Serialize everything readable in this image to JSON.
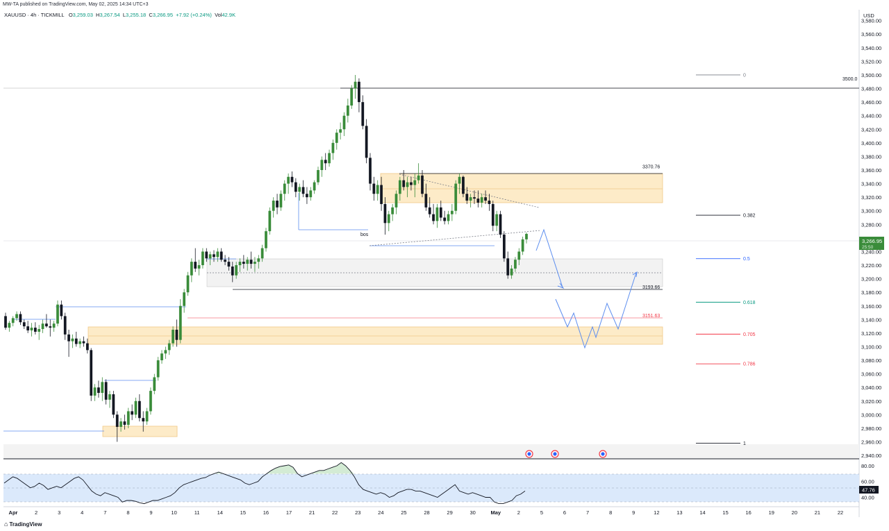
{
  "header": {
    "published": "MW-TA published on TradingView.com, May 02, 2025 14:34 UTC+3"
  },
  "info": {
    "symbol": "XAUUSD · 4h · TICKMILL",
    "o_label": "O",
    "o": "3,259.03",
    "h_label": "H",
    "h": "3,267.54",
    "l_label": "L",
    "l": "3,255.18",
    "c_label": "C",
    "c": "3,266.95",
    "change": "+7.92 (+0.24%)",
    "vol_label": "Vol",
    "vol": "42.9K"
  },
  "colors": {
    "up": "#3a8c3a",
    "down": "#131722",
    "zone_fill": "#fdebc8",
    "zone_stroke": "#f0c987",
    "blue_line": "#2962ff",
    "rsi_band": "#dbe9fb",
    "price_tag": "#3a8c3a"
  },
  "footer": {
    "logo": "TradingView",
    "logo_icon": "tradingview-logo-icon"
  },
  "chart_data": {
    "type": "candlestick",
    "currency_label": "USD",
    "y_axis_ticks": [
      "3,580.00",
      "3,560.00",
      "3,540.00",
      "3,520.00",
      "3,500.00",
      "3,480.00",
      "3,460.00",
      "3,440.00",
      "3,420.00",
      "3,400.00",
      "3,380.00",
      "3,360.00",
      "3,340.00",
      "3,320.00",
      "3,300.00",
      "3,280.00",
      "3,260.00",
      "3,240.00",
      "3,220.00",
      "3,200.00",
      "3,180.00",
      "3,160.00",
      "3,140.00",
      "3,120.00",
      "3,100.00",
      "3,080.00",
      "3,060.00",
      "3,040.00",
      "3,020.00",
      "3,000.00",
      "2,980.00",
      "2,960.00",
      "2,940.00"
    ],
    "ylim": [
      2936,
      3596
    ],
    "x_axis_labels": [
      "Apr",
      "2",
      "3",
      "4",
      "7",
      "8",
      "9",
      "10",
      "11",
      "14",
      "15",
      "16",
      "17",
      "21",
      "22",
      "23",
      "24",
      "25",
      "28",
      "29",
      "30",
      "May",
      "2",
      "5",
      "6",
      "7",
      "8",
      "9",
      "12",
      "13",
      "14",
      "15",
      "16",
      "19",
      "20",
      "21",
      "22"
    ],
    "current_price": "3,266.95",
    "countdown": "25:50",
    "candles": [
      [
        3145,
        3150,
        3125,
        3128
      ],
      [
        3128,
        3138,
        3122,
        3135
      ],
      [
        3135,
        3145,
        3130,
        3142
      ],
      [
        3142,
        3152,
        3138,
        3148
      ],
      [
        3148,
        3152,
        3132,
        3136
      ],
      [
        3136,
        3140,
        3126,
        3130
      ],
      [
        3130,
        3138,
        3120,
        3124
      ],
      [
        3124,
        3135,
        3115,
        3128
      ],
      [
        3128,
        3136,
        3118,
        3122
      ],
      [
        3122,
        3132,
        3110,
        3126
      ],
      [
        3126,
        3140,
        3120,
        3134
      ],
      [
        3134,
        3148,
        3128,
        3130
      ],
      [
        3130,
        3140,
        3115,
        3128
      ],
      [
        3128,
        3138,
        3122,
        3134
      ],
      [
        3134,
        3168,
        3130,
        3162
      ],
      [
        3162,
        3168,
        3140,
        3145
      ],
      [
        3145,
        3150,
        3110,
        3118
      ],
      [
        3118,
        3125,
        3085,
        3108
      ],
      [
        3108,
        3118,
        3098,
        3112
      ],
      [
        3112,
        3122,
        3100,
        3104
      ],
      [
        3104,
        3112,
        3098,
        3108
      ],
      [
        3108,
        3115,
        3100,
        3105
      ],
      [
        3105,
        3112,
        3090,
        3095
      ],
      [
        3095,
        3098,
        3020,
        3028
      ],
      [
        3028,
        3045,
        3020,
        3040
      ],
      [
        3040,
        3050,
        3025,
        3032
      ],
      [
        3032,
        3055,
        3020,
        3048
      ],
      [
        3048,
        3052,
        3015,
        3022
      ],
      [
        3022,
        3035,
        3010,
        3030
      ],
      [
        3030,
        3035,
        2995,
        3000
      ],
      [
        3000,
        3005,
        2960,
        2982
      ],
      [
        2982,
        2995,
        2975,
        2990
      ],
      [
        2990,
        3000,
        2978,
        2985
      ],
      [
        2985,
        3010,
        2980,
        3005
      ],
      [
        3005,
        3015,
        2992,
        3000
      ],
      [
        3000,
        3025,
        2995,
        3020
      ],
      [
        3020,
        3030,
        2990,
        2995
      ],
      [
        2995,
        3005,
        2975,
        2990
      ],
      [
        2990,
        3010,
        2985,
        3005
      ],
      [
        3005,
        3040,
        3000,
        3035
      ],
      [
        3035,
        3060,
        3030,
        3055
      ],
      [
        3055,
        3085,
        3050,
        3080
      ],
      [
        3080,
        3095,
        3075,
        3090
      ],
      [
        3090,
        3100,
        3082,
        3095
      ],
      [
        3095,
        3110,
        3088,
        3105
      ],
      [
        3105,
        3130,
        3100,
        3125
      ],
      [
        3125,
        3140,
        3100,
        3110
      ],
      [
        3110,
        3170,
        3105,
        3160
      ],
      [
        3160,
        3185,
        3150,
        3180
      ],
      [
        3180,
        3210,
        3175,
        3205
      ],
      [
        3205,
        3230,
        3195,
        3225
      ],
      [
        3225,
        3245,
        3210,
        3215
      ],
      [
        3215,
        3228,
        3205,
        3220
      ],
      [
        3220,
        3245,
        3215,
        3240
      ],
      [
        3240,
        3245,
        3225,
        3230
      ],
      [
        3230,
        3240,
        3220,
        3236
      ],
      [
        3236,
        3242,
        3225,
        3232
      ],
      [
        3232,
        3245,
        3225,
        3240
      ],
      [
        3240,
        3245,
        3225,
        3228
      ],
      [
        3228,
        3235,
        3220,
        3225
      ],
      [
        3225,
        3232,
        3212,
        3218
      ],
      [
        3218,
        3225,
        3195,
        3205
      ],
      [
        3205,
        3225,
        3200,
        3220
      ],
      [
        3220,
        3230,
        3210,
        3225
      ],
      [
        3225,
        3235,
        3215,
        3222
      ],
      [
        3222,
        3232,
        3212,
        3228
      ],
      [
        3228,
        3240,
        3215,
        3222
      ],
      [
        3222,
        3232,
        3210,
        3225
      ],
      [
        3225,
        3235,
        3215,
        3230
      ],
      [
        3230,
        3250,
        3225,
        3245
      ],
      [
        3245,
        3275,
        3240,
        3270
      ],
      [
        3270,
        3305,
        3265,
        3300
      ],
      [
        3300,
        3320,
        3290,
        3315
      ],
      [
        3315,
        3325,
        3295,
        3305
      ],
      [
        3305,
        3330,
        3300,
        3325
      ],
      [
        3325,
        3345,
        3315,
        3340
      ],
      [
        3340,
        3355,
        3325,
        3350
      ],
      [
        3350,
        3358,
        3335,
        3342
      ],
      [
        3342,
        3348,
        3320,
        3328
      ],
      [
        3328,
        3340,
        3315,
        3335
      ],
      [
        3335,
        3345,
        3320,
        3325
      ],
      [
        3325,
        3335,
        3310,
        3320
      ],
      [
        3320,
        3335,
        3315,
        3330
      ],
      [
        3330,
        3345,
        3325,
        3342
      ],
      [
        3342,
        3365,
        3338,
        3360
      ],
      [
        3360,
        3380,
        3350,
        3375
      ],
      [
        3375,
        3385,
        3360,
        3370
      ],
      [
        3370,
        3390,
        3365,
        3385
      ],
      [
        3385,
        3405,
        3375,
        3400
      ],
      [
        3400,
        3420,
        3390,
        3415
      ],
      [
        3415,
        3430,
        3405,
        3420
      ],
      [
        3420,
        3445,
        3410,
        3440
      ],
      [
        3440,
        3465,
        3430,
        3455
      ],
      [
        3455,
        3485,
        3450,
        3480
      ],
      [
        3480,
        3500,
        3465,
        3490
      ],
      [
        3490,
        3495,
        3445,
        3460
      ],
      [
        3460,
        3470,
        3420,
        3425
      ],
      [
        3425,
        3435,
        3370,
        3378
      ],
      [
        3378,
        3385,
        3330,
        3340
      ],
      [
        3340,
        3350,
        3315,
        3325
      ],
      [
        3325,
        3345,
        3315,
        3338
      ],
      [
        3338,
        3350,
        3300,
        3310
      ],
      [
        3310,
        3320,
        3265,
        3282
      ],
      [
        3282,
        3300,
        3270,
        3295
      ],
      [
        3295,
        3310,
        3285,
        3305
      ],
      [
        3305,
        3330,
        3295,
        3325
      ],
      [
        3325,
        3350,
        3315,
        3345
      ],
      [
        3345,
        3360,
        3330,
        3335
      ],
      [
        3335,
        3350,
        3320,
        3342
      ],
      [
        3342,
        3350,
        3330,
        3338
      ],
      [
        3338,
        3355,
        3320,
        3345
      ],
      [
        3345,
        3370,
        3340,
        3352
      ],
      [
        3352,
        3360,
        3320,
        3325
      ],
      [
        3325,
        3340,
        3300,
        3305
      ],
      [
        3305,
        3320,
        3290,
        3295
      ],
      [
        3295,
        3310,
        3280,
        3285
      ],
      [
        3285,
        3310,
        3275,
        3305
      ],
      [
        3305,
        3315,
        3285,
        3290
      ],
      [
        3290,
        3300,
        3280,
        3285
      ],
      [
        3285,
        3300,
        3280,
        3295
      ],
      [
        3295,
        3310,
        3285,
        3300
      ],
      [
        3300,
        3345,
        3295,
        3340
      ],
      [
        3340,
        3355,
        3325,
        3350
      ],
      [
        3350,
        3352,
        3320,
        3325
      ],
      [
        3325,
        3335,
        3310,
        3315
      ],
      [
        3315,
        3325,
        3305,
        3320
      ],
      [
        3320,
        3330,
        3310,
        3318
      ],
      [
        3318,
        3330,
        3305,
        3312
      ],
      [
        3312,
        3325,
        3305,
        3320
      ],
      [
        3320,
        3330,
        3310,
        3315
      ],
      [
        3315,
        3325,
        3300,
        3310
      ],
      [
        3310,
        3315,
        3270,
        3278
      ],
      [
        3278,
        3300,
        3270,
        3295
      ],
      [
        3295,
        3300,
        3260,
        3265
      ],
      [
        3265,
        3270,
        3225,
        3230
      ],
      [
        3230,
        3240,
        3200,
        3205
      ],
      [
        3205,
        3220,
        3200,
        3215
      ],
      [
        3215,
        3232,
        3210,
        3228
      ],
      [
        3228,
        3245,
        3220,
        3240
      ],
      [
        3240,
        3262,
        3235,
        3258
      ],
      [
        3258,
        3268,
        3252,
        3266
      ]
    ],
    "levels": [
      {
        "label": "3370.76",
        "value": 3370.76
      },
      {
        "label": "3193.66",
        "value": 3193.66
      },
      {
        "label": "3151.63",
        "value": 3151.63
      },
      {
        "label": "3500.0",
        "value": 3500.0
      }
    ],
    "fib_levels": [
      {
        "label": "0",
        "value": 3500.0
      },
      {
        "label": "0.382",
        "value": 3293.5
      },
      {
        "label": "0.5",
        "value": 3229.5
      },
      {
        "label": "0.618",
        "value": 3165.5
      },
      {
        "label": "0.705",
        "value": 3118.5
      },
      {
        "label": "0.786",
        "value": 3074.8
      },
      {
        "label": "1",
        "value": 2958.0
      }
    ],
    "annotation_bos": "bos",
    "rsi": {
      "ticks": [
        "80.00",
        "60.00",
        "40.00"
      ],
      "current": "47.76",
      "ylim": [
        29,
        87
      ],
      "band": [
        30,
        70
      ],
      "values": [
        58,
        62,
        66,
        64,
        60,
        56,
        52,
        54,
        58,
        55,
        50,
        52,
        54,
        52,
        56,
        60,
        64,
        66,
        62,
        55,
        48,
        44,
        42,
        46,
        44,
        42,
        40,
        34,
        36,
        36,
        35,
        33,
        32,
        34,
        36,
        36,
        38,
        40,
        42,
        46,
        52,
        56,
        58,
        60,
        62,
        64,
        65,
        68,
        70,
        72,
        70,
        68,
        66,
        64,
        62,
        58,
        56,
        58,
        60,
        66,
        70,
        74,
        77,
        79,
        80,
        81,
        78,
        70,
        66,
        68,
        70,
        72,
        74,
        74,
        76,
        78,
        80,
        84,
        80,
        74,
        66,
        56,
        50,
        48,
        46,
        44,
        46,
        44,
        40,
        42,
        46,
        48,
        50,
        50,
        48,
        48,
        46,
        44,
        42,
        40,
        44,
        48,
        52,
        56,
        48,
        46,
        44,
        46,
        44,
        42,
        40,
        40,
        34,
        32,
        32,
        34,
        36,
        42,
        44,
        48
      ]
    }
  }
}
